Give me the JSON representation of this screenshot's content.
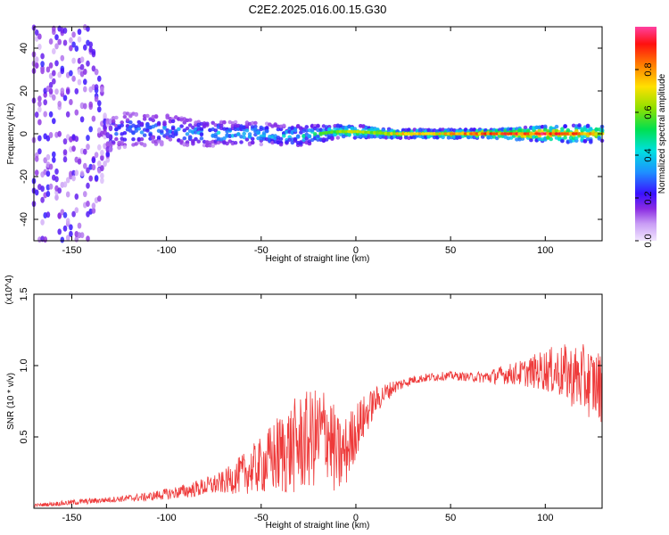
{
  "title": "C2E2.2025.016.00.15.G30",
  "chart_data": [
    {
      "type": "heatmap",
      "xlabel": "Height of straight line (km)",
      "ylabel": "Frequency (Hz)",
      "xlim": [
        -170,
        130
      ],
      "ylim": [
        -50,
        50
      ],
      "x_ticks": [
        -150,
        -100,
        -50,
        0,
        50,
        100
      ],
      "y_ticks": [
        -40,
        -20,
        0,
        20,
        40
      ],
      "colorbar": {
        "label": "Normalized spectral amplitude",
        "range": [
          0.0,
          1.0
        ],
        "ticks": [
          0.0,
          0.2,
          0.4,
          0.6,
          0.8
        ],
        "tick_labels": [
          "0.0",
          "0.2",
          "0.4",
          "0.6",
          "0.8"
        ]
      },
      "band_profile": {
        "x": [
          -170,
          -140,
          -130,
          -120,
          -100,
          -80,
          -50,
          -30,
          -20,
          -10,
          0,
          20,
          50,
          70,
          90,
          110,
          130
        ],
        "center_hz": [
          0,
          0,
          0,
          2,
          2,
          0,
          0,
          -1,
          0,
          1,
          1,
          0,
          0,
          0,
          0,
          0,
          0
        ],
        "halfwidth_hz": [
          50,
          50,
          8,
          8,
          7,
          6,
          5,
          5,
          4,
          3,
          3,
          2,
          2,
          2,
          3,
          4,
          4
        ],
        "peak_amplitude": [
          0.15,
          0.2,
          0.3,
          0.35,
          0.35,
          0.4,
          0.45,
          0.45,
          0.55,
          0.6,
          0.65,
          0.7,
          0.75,
          0.85,
          0.9,
          0.9,
          0.7
        ]
      }
    },
    {
      "type": "line",
      "xlabel": "Height of straight line (km)",
      "ylabel": "SNR (10 * v/v)",
      "y_scale_label": "(x10^4)",
      "xlim": [
        -170,
        130
      ],
      "ylim": [
        0,
        1.5
      ],
      "x_ticks": [
        -150,
        -100,
        -50,
        0,
        50,
        100
      ],
      "y_ticks": [
        0.5,
        1.0,
        1.5
      ],
      "y_tick_labels": [
        "0.5",
        "1.0",
        "1.5"
      ],
      "series": [
        {
          "color": "#ee3a3a",
          "x": [
            -170,
            -150,
            -130,
            -110,
            -90,
            -70,
            -50,
            -40,
            -30,
            -20,
            -15,
            -10,
            -5,
            0,
            10,
            20,
            30,
            40,
            50,
            60,
            70,
            80,
            90,
            100,
            110,
            120,
            130
          ],
          "y": [
            0.02,
            0.04,
            0.06,
            0.08,
            0.12,
            0.18,
            0.3,
            0.38,
            0.45,
            0.5,
            0.55,
            0.35,
            0.4,
            0.55,
            0.75,
            0.85,
            0.9,
            0.92,
            0.93,
            0.92,
            0.92,
            0.94,
            0.95,
            0.97,
            0.95,
            0.9,
            0.85
          ],
          "noise_amplitude": [
            0.01,
            0.02,
            0.02,
            0.03,
            0.05,
            0.08,
            0.2,
            0.3,
            0.35,
            0.35,
            0.35,
            0.3,
            0.25,
            0.2,
            0.1,
            0.05,
            0.03,
            0.03,
            0.03,
            0.03,
            0.05,
            0.07,
            0.1,
            0.15,
            0.2,
            0.25,
            0.25
          ]
        }
      ]
    }
  ]
}
